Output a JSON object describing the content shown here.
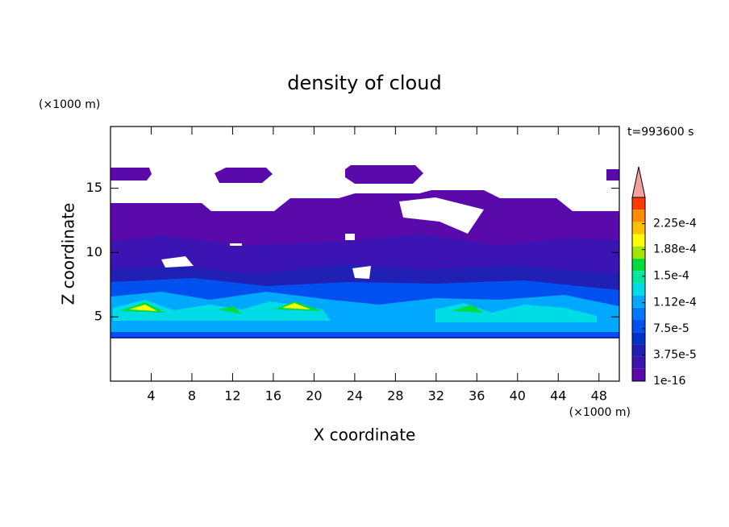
{
  "chart_data": {
    "type": "contour",
    "title": "density of cloud",
    "x_label": "X coordinate",
    "y_label": "Z coordinate",
    "x_unit": "(×1000 m)",
    "y_unit": "(×1000 m)",
    "annotation": "t=993600 s",
    "xlim": [
      0,
      50
    ],
    "xticks": [
      4,
      8,
      12,
      16,
      20,
      24,
      28,
      32,
      36,
      40,
      44,
      48
    ],
    "ylim": [
      0,
      19.8
    ],
    "yticks": [
      5,
      10,
      15
    ],
    "colorbar": {
      "clim": [
        1e-16,
        0.0002625
      ],
      "ticks": [
        {
          "value": 1e-16,
          "label": "1e-16"
        },
        {
          "value": 3.75e-05,
          "label": "3.75e-5"
        },
        {
          "value": 7.5e-05,
          "label": "7.5e-5"
        },
        {
          "value": 0.000112,
          "label": "1.12e-4"
        },
        {
          "value": 0.00015,
          "label": "1.5e-4"
        },
        {
          "value": 0.000188,
          "label": "1.88e-4"
        },
        {
          "value": 0.000225,
          "label": "2.25e-4"
        }
      ],
      "colors": [
        "#5a0aaa",
        "#3c14b4",
        "#2020b4",
        "#0032c8",
        "#0050f0",
        "#0078ff",
        "#00a8ff",
        "#00dce6",
        "#00e6a0",
        "#00dc3c",
        "#a0e600",
        "#ffff00",
        "#ffc000",
        "#ff8c00",
        "#ff3c00"
      ],
      "over_color": "#f4a0a0"
    }
  }
}
